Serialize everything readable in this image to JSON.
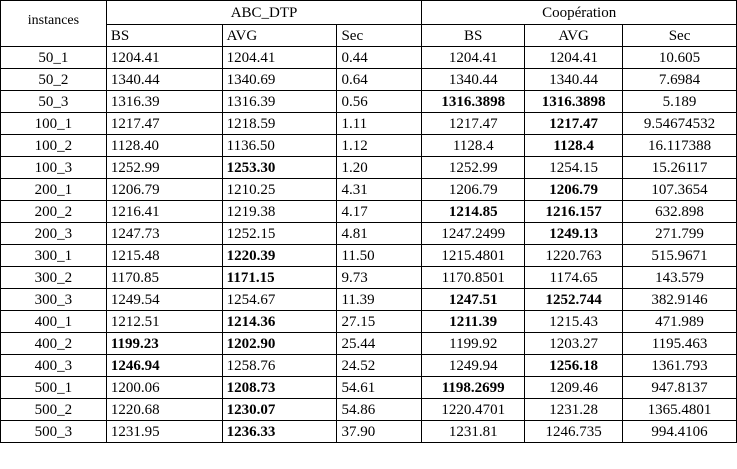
{
  "header": {
    "instances": "instances",
    "group1": "ABC_DTP",
    "group2": "Coopération",
    "sub": [
      "BS",
      "AVG",
      "Sec",
      "BS",
      "AVG",
      "Sec"
    ]
  },
  "rows": [
    {
      "inst": "50_1",
      "c": [
        "1204.41",
        "1204.41",
        "0.44",
        "1204.41",
        "1204.41",
        "10.605"
      ],
      "bold": [
        false,
        false,
        false,
        false,
        false,
        false
      ]
    },
    {
      "inst": "50_2",
      "c": [
        "1340.44",
        "1340.69",
        "0.64",
        "1340.44",
        "1340.44",
        "7.6984"
      ],
      "bold": [
        false,
        false,
        false,
        false,
        false,
        false
      ]
    },
    {
      "inst": "50_3",
      "c": [
        "1316.39",
        "1316.39",
        "0.56",
        "1316.3898",
        "1316.3898",
        "5.189"
      ],
      "bold": [
        false,
        false,
        false,
        true,
        true,
        false
      ]
    },
    {
      "inst": "100_1",
      "c": [
        "1217.47",
        "1218.59",
        "1.11",
        "1217.47",
        "1217.47",
        "9.54674532"
      ],
      "bold": [
        false,
        false,
        false,
        false,
        true,
        false
      ]
    },
    {
      "inst": "100_2",
      "c": [
        "1128.40",
        "1136.50",
        "1.12",
        "1128.4",
        "1128.4",
        "16.117388"
      ],
      "bold": [
        false,
        false,
        false,
        false,
        true,
        false
      ]
    },
    {
      "inst": "100_3",
      "c": [
        "1252.99",
        "1253.30",
        "1.20",
        "1252.99",
        "1254.15",
        "15.26117"
      ],
      "bold": [
        false,
        true,
        false,
        false,
        false,
        false
      ]
    },
    {
      "inst": "200_1",
      "c": [
        "1206.79",
        "1210.25",
        "4.31",
        "1206.79",
        "1206.79",
        "107.3654"
      ],
      "bold": [
        false,
        false,
        false,
        false,
        true,
        false
      ]
    },
    {
      "inst": "200_2",
      "c": [
        "1216.41",
        "1219.38",
        "4.17",
        "1214.85",
        "1216.157",
        "632.898"
      ],
      "bold": [
        false,
        false,
        false,
        true,
        true,
        false
      ]
    },
    {
      "inst": "200_3",
      "c": [
        "1247.73",
        "1252.15",
        "4.81",
        "1247.2499",
        "1249.13",
        "271.799"
      ],
      "bold": [
        false,
        false,
        false,
        false,
        true,
        false
      ]
    },
    {
      "inst": "300_1",
      "c": [
        "1215.48",
        "1220.39",
        "11.50",
        "1215.4801",
        "1220.763",
        "515.9671"
      ],
      "bold": [
        false,
        true,
        false,
        false,
        false,
        false
      ]
    },
    {
      "inst": "300_2",
      "c": [
        "1170.85",
        "1171.15",
        "9.73",
        "1170.8501",
        "1174.65",
        "143.579"
      ],
      "bold": [
        false,
        true,
        false,
        false,
        false,
        false
      ]
    },
    {
      "inst": "300_3",
      "c": [
        "1249.54",
        "1254.67",
        "11.39",
        "1247.51",
        "1252.744",
        "382.9146"
      ],
      "bold": [
        false,
        false,
        false,
        true,
        true,
        false
      ]
    },
    {
      "inst": "400_1",
      "c": [
        "1212.51",
        "1214.36",
        "27.15",
        "1211.39",
        "1215.43",
        "471.989"
      ],
      "bold": [
        false,
        true,
        false,
        true,
        false,
        false
      ]
    },
    {
      "inst": "400_2",
      "c": [
        "1199.23",
        "1202.90",
        "25.44",
        "1199.92",
        "1203.27",
        "1195.463"
      ],
      "bold": [
        true,
        true,
        false,
        false,
        false,
        false
      ]
    },
    {
      "inst": "400_3",
      "c": [
        "1246.94",
        "1258.76",
        "24.52",
        "1249.94",
        "1256.18",
        "1361.793"
      ],
      "bold": [
        true,
        false,
        false,
        false,
        true,
        false
      ]
    },
    {
      "inst": "500_1",
      "c": [
        "1200.06",
        "1208.73",
        "54.61",
        "1198.2699",
        "1209.46",
        "947.8137"
      ],
      "bold": [
        false,
        true,
        false,
        true,
        false,
        false
      ]
    },
    {
      "inst": "500_2",
      "c": [
        "1220.68",
        "1230.07",
        "54.86",
        "1220.4701",
        "1231.28",
        "1365.4801"
      ],
      "bold": [
        false,
        true,
        false,
        false,
        false,
        false
      ]
    },
    {
      "inst": "500_3",
      "c": [
        "1231.95",
        "1236.33",
        "37.90",
        "1231.81",
        "1246.735",
        "994.4106"
      ],
      "bold": [
        false,
        true,
        false,
        false,
        false,
        false
      ]
    }
  ]
}
